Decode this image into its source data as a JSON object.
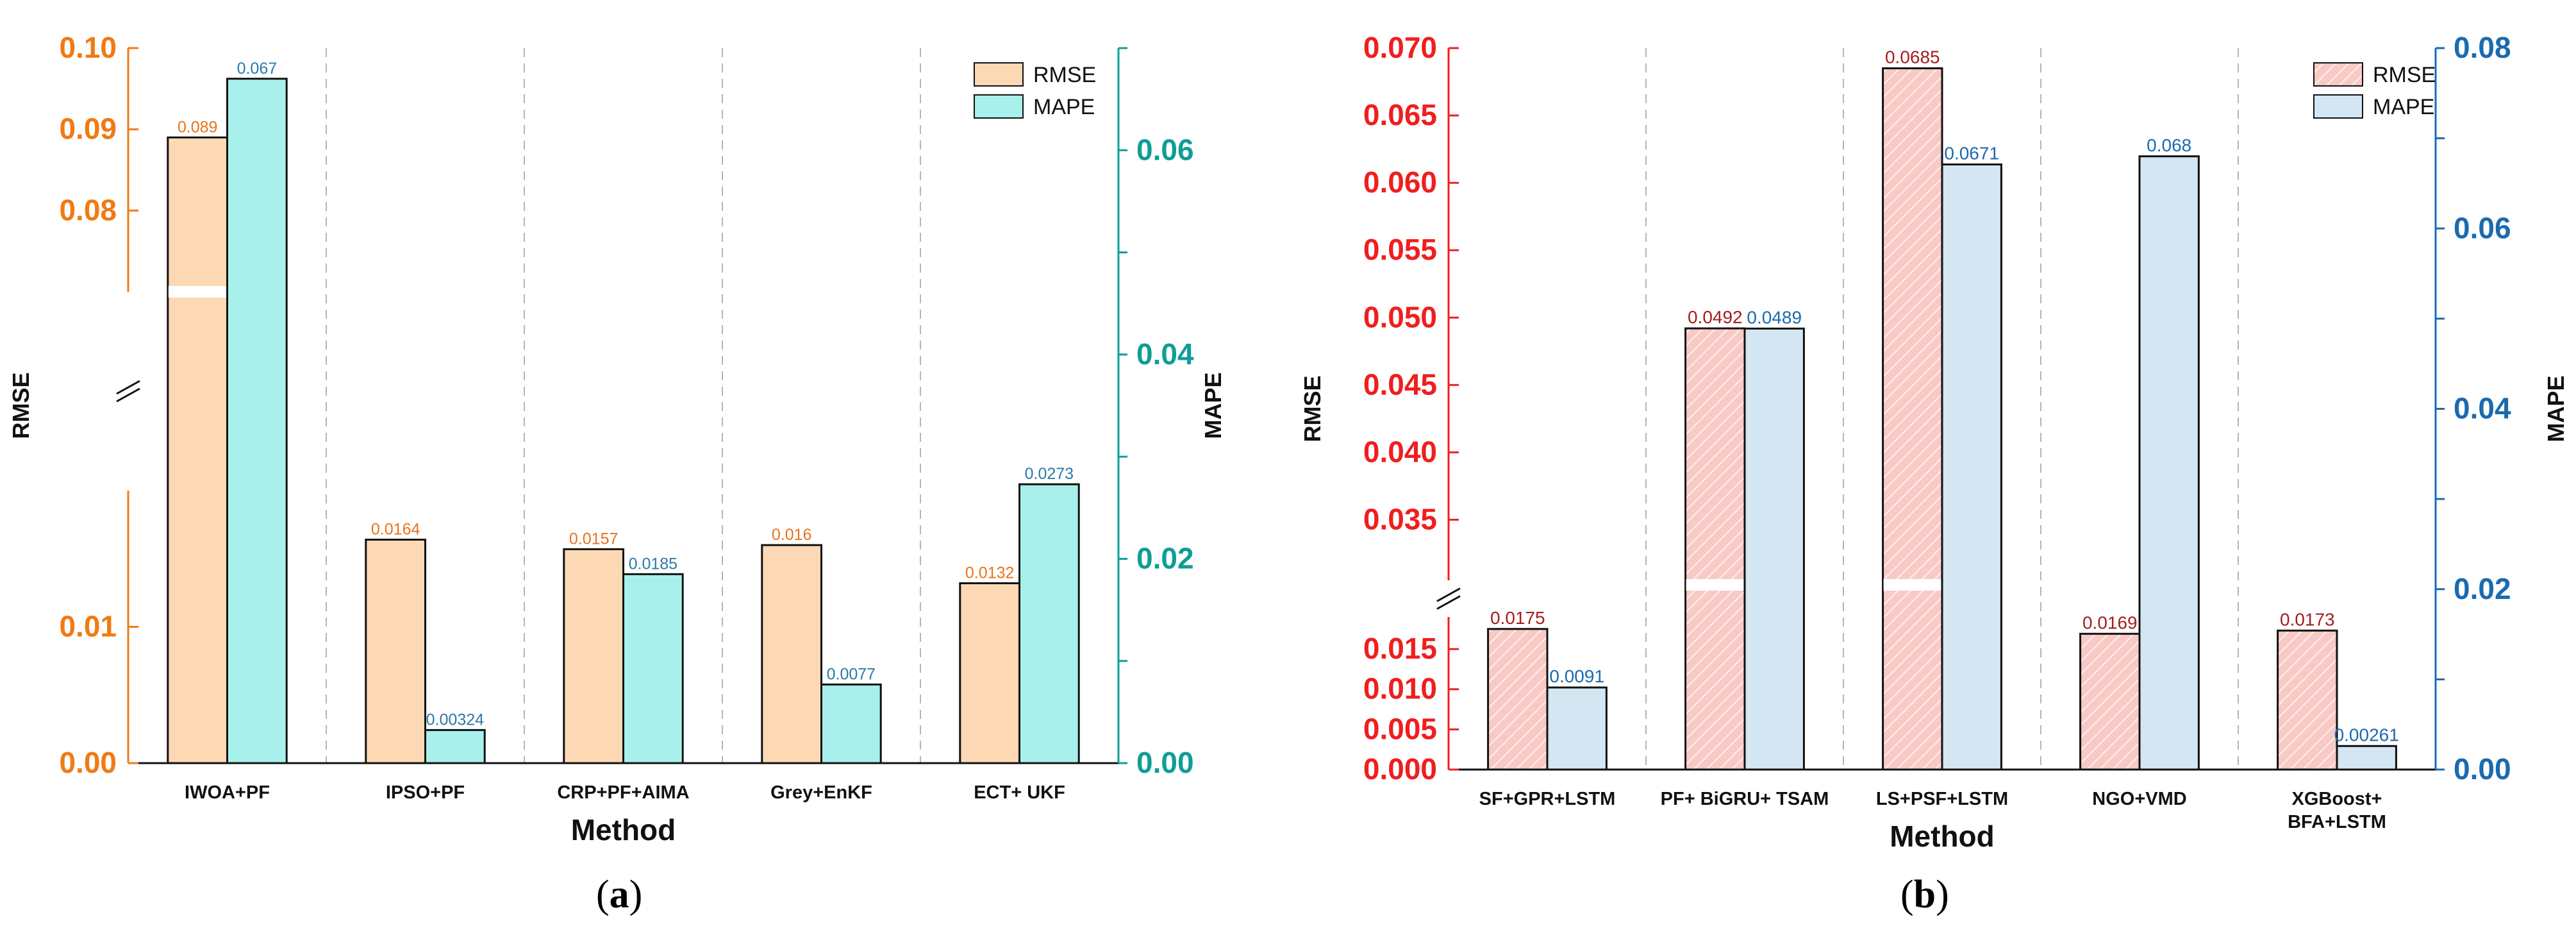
{
  "figure": {
    "panel_a_label": "a",
    "panel_b_label": "b"
  },
  "chart_data": [
    {
      "type": "bar",
      "panel": "a",
      "xlabel": "Method",
      "ylabel_left": "RMSE",
      "ylabel_right": "MAPE",
      "categories": [
        "IWOA+PF",
        "IPSO+PF",
        "CRP+PF+AIMA",
        "Grey+EnKF",
        "ECT+ UKF"
      ],
      "series": [
        {
          "name": "RMSE",
          "axis": "left",
          "color": "#FCD9B4",
          "values": [
            0.089,
            0.0164,
            0.0157,
            0.016,
            0.0132
          ],
          "labels": [
            "0.089",
            "0.0164",
            "0.0157",
            "0.016",
            "0.0132"
          ],
          "label_color": "#E8731A"
        },
        {
          "name": "MAPE",
          "axis": "right",
          "color": "#A8F0EB",
          "values": [
            0.067,
            0.00324,
            0.0185,
            0.0077,
            0.0273
          ],
          "labels": [
            "0.067",
            "0.00324",
            "0.0185",
            "0.0077",
            "0.0273"
          ],
          "label_color": "#2A7AA8"
        }
      ],
      "left_axis": {
        "color": "#F07A14",
        "broken": true,
        "lower_segment": {
          "range": [
            0,
            0.02
          ],
          "ticks": [
            0,
            0.01
          ],
          "tick_labels": [
            "0.00",
            "0.01"
          ]
        },
        "upper_segment": {
          "range": [
            0.07,
            0.1
          ],
          "ticks": [
            0.08,
            0.09,
            0.1
          ],
          "tick_labels": [
            "0.08",
            "0.09",
            "0.10"
          ]
        }
      },
      "right_axis": {
        "color": "#0E9E96",
        "range": [
          0,
          0.07
        ],
        "ticks": [
          0,
          0.02,
          0.04,
          0.06
        ],
        "tick_labels": [
          "0.00",
          "0.02",
          "0.04",
          "0.06"
        ]
      },
      "legend": {
        "position": "top-right",
        "entries": [
          "RMSE",
          "MAPE"
        ]
      }
    },
    {
      "type": "bar",
      "panel": "b",
      "xlabel": "Method",
      "ylabel_left": "RMSE",
      "ylabel_right": "MAPE",
      "categories": [
        "SF+GPR+LSTM",
        "PF+ BiGRU+ TSAM",
        "LS+PSF+LSTM",
        "NGO+VMD",
        "XGBoost+\nBFA+LSTM"
      ],
      "series": [
        {
          "name": "RMSE",
          "axis": "left",
          "color": "#F9C9C5",
          "hatch": true,
          "values": [
            0.0175,
            0.0492,
            0.0685,
            0.0169,
            0.0173
          ],
          "labels": [
            "0.0175",
            "0.0492",
            "0.0685",
            "0.0169",
            "0.0173"
          ],
          "label_color": "#A51D1D"
        },
        {
          "name": "MAPE",
          "axis": "right",
          "color": "#D3E6F2",
          "values": [
            0.0091,
            0.0489,
            0.0671,
            0.068,
            0.00261
          ],
          "labels": [
            "0.0091",
            "0.0489",
            "0.0671",
            "0.068",
            "0.00261"
          ],
          "label_color": "#1B6AAF"
        }
      ],
      "left_axis": {
        "color": "#F01E1E",
        "broken": true,
        "lower_segment": {
          "range": [
            0,
            0.019
          ],
          "ticks": [
            0,
            0.005,
            0.01,
            0.015
          ],
          "tick_labels": [
            "0.000",
            "0.005",
            "0.010",
            "0.015"
          ]
        },
        "upper_segment": {
          "range": [
            0.0305,
            0.07
          ],
          "ticks": [
            0.035,
            0.04,
            0.045,
            0.05,
            0.055,
            0.06,
            0.065,
            0.07
          ],
          "tick_labels": [
            "0.035",
            "0.040",
            "0.045",
            "0.050",
            "0.055",
            "0.060",
            "0.065",
            "0.070"
          ]
        }
      },
      "right_axis": {
        "color": "#1B6AAF",
        "range": [
          0,
          0.08
        ],
        "ticks": [
          0,
          0.02,
          0.04,
          0.06,
          0.08
        ],
        "tick_labels": [
          "0.00",
          "0.02",
          "0.04",
          "0.06",
          "0.08"
        ]
      },
      "legend": {
        "position": "top-right",
        "entries": [
          "RMSE",
          "MAPE"
        ]
      }
    }
  ]
}
